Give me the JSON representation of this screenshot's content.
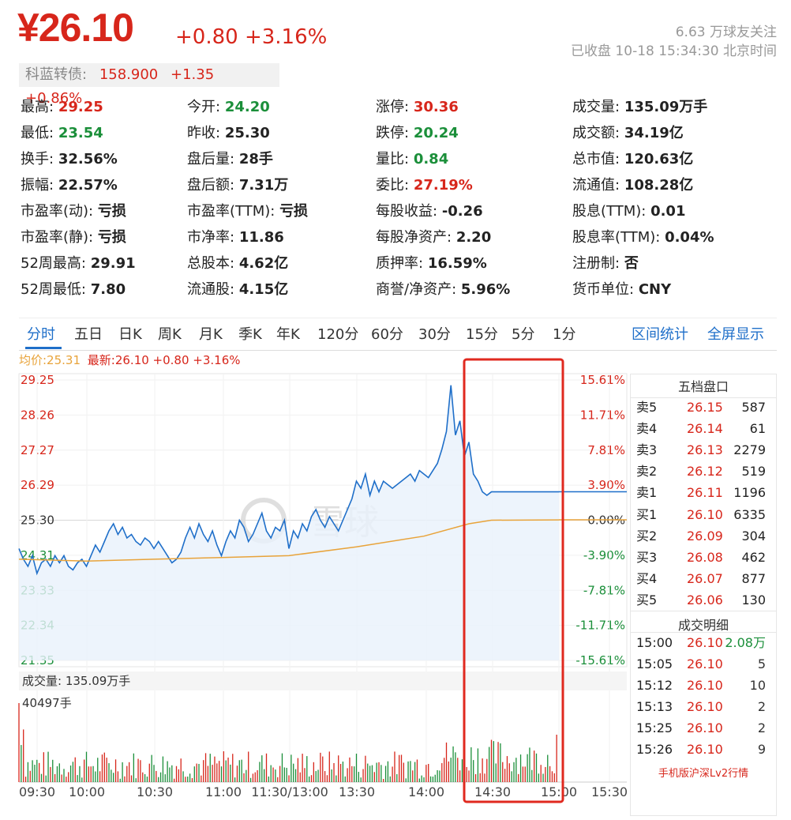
{
  "header": {
    "price": "¥26.10",
    "change": "+0.80",
    "change_pct": "+3.16%",
    "followers": "6.63 万球友关注",
    "status": "已收盘 10-18 15:34:30 北京时间"
  },
  "bond": {
    "label": "科蓝转债:",
    "price": "158.900",
    "change": "+1.35",
    "change_pct": "+0.86%"
  },
  "quote": [
    [
      {
        "l": "最高:",
        "v": "29.25",
        "c": "red"
      },
      {
        "l": "今开:",
        "v": "24.20",
        "c": "green"
      },
      {
        "l": "涨停:",
        "v": "30.36",
        "c": "red"
      },
      {
        "l": "成交量:",
        "v": "135.09万手",
        "c": ""
      }
    ],
    [
      {
        "l": "最低:",
        "v": "23.54",
        "c": "green"
      },
      {
        "l": "昨收:",
        "v": "25.30",
        "c": ""
      },
      {
        "l": "跌停:",
        "v": "20.24",
        "c": "green"
      },
      {
        "l": "成交额:",
        "v": "34.19亿",
        "c": ""
      }
    ],
    [
      {
        "l": "换手:",
        "v": "32.56%",
        "c": ""
      },
      {
        "l": "盘后量:",
        "v": "28手",
        "c": ""
      },
      {
        "l": "量比:",
        "v": "0.84",
        "c": "green"
      },
      {
        "l": "总市值:",
        "v": "120.63亿",
        "c": ""
      }
    ],
    [
      {
        "l": "振幅:",
        "v": "22.57%",
        "c": ""
      },
      {
        "l": "盘后额:",
        "v": "7.31万",
        "c": ""
      },
      {
        "l": "委比:",
        "v": "27.19%",
        "c": "red"
      },
      {
        "l": "流通值:",
        "v": "108.28亿",
        "c": ""
      }
    ],
    [
      {
        "l": "市盈率(动):",
        "v": "亏损",
        "c": ""
      },
      {
        "l": "市盈率(TTM):",
        "v": "亏损",
        "c": ""
      },
      {
        "l": "每股收益:",
        "v": "-0.26",
        "c": ""
      },
      {
        "l": "股息(TTM):",
        "v": "0.01",
        "c": ""
      }
    ],
    [
      {
        "l": "市盈率(静):",
        "v": "亏损",
        "c": ""
      },
      {
        "l": "市净率:",
        "v": "11.86",
        "c": ""
      },
      {
        "l": "每股净资产:",
        "v": "2.20",
        "c": ""
      },
      {
        "l": "股息率(TTM):",
        "v": "0.04%",
        "c": ""
      }
    ],
    [
      {
        "l": "52周最高:",
        "v": "29.91",
        "c": ""
      },
      {
        "l": "总股本:",
        "v": "4.62亿",
        "c": ""
      },
      {
        "l": "质押率:",
        "v": "16.59%",
        "c": ""
      },
      {
        "l": "注册制:",
        "v": "否",
        "c": ""
      }
    ],
    [
      {
        "l": "52周最低:",
        "v": "7.80",
        "c": ""
      },
      {
        "l": "流通股:",
        "v": "4.15亿",
        "c": ""
      },
      {
        "l": "商誉/净资产:",
        "v": "5.96%",
        "c": ""
      },
      {
        "l": "货币单位:",
        "v": "CNY",
        "c": ""
      }
    ]
  ],
  "tabs": [
    "分时",
    "五日",
    "日K",
    "周K",
    "月K",
    "季K",
    "年K",
    "120分",
    "60分",
    "30分",
    "15分",
    "5分",
    "1分"
  ],
  "tab_actions": [
    "区间统计",
    "全屏显示"
  ],
  "legend": {
    "avg": "均价:25.31",
    "latest": "最新:26.10 +0.80 +3.16%"
  },
  "watermark": "雪球",
  "volume_label": "成交量: 135.09万手",
  "volume_max_label": "40497手",
  "orderbook": {
    "title": "五档盘口",
    "asks": [
      [
        "卖5",
        "26.15",
        "587"
      ],
      [
        "卖4",
        "26.14",
        "61"
      ],
      [
        "卖3",
        "26.13",
        "2279"
      ],
      [
        "卖2",
        "26.12",
        "519"
      ],
      [
        "卖1",
        "26.11",
        "1196"
      ]
    ],
    "bids": [
      [
        "买1",
        "26.10",
        "6335"
      ],
      [
        "买2",
        "26.09",
        "304"
      ],
      [
        "买3",
        "26.08",
        "462"
      ],
      [
        "买4",
        "26.07",
        "877"
      ],
      [
        "买5",
        "26.06",
        "130"
      ]
    ]
  },
  "trades": {
    "title": "成交明细",
    "rows": [
      [
        "15:00",
        "26.10",
        "2.08万"
      ],
      [
        "15:05",
        "26.10",
        "5"
      ],
      [
        "15:12",
        "26.10",
        "10"
      ],
      [
        "15:13",
        "26.10",
        "2"
      ],
      [
        "15:25",
        "26.10",
        "2"
      ],
      [
        "15:26",
        "26.10",
        "9"
      ]
    ],
    "footer": "手机版沪深Lv2行情"
  },
  "colors": {
    "up": "#d7261b",
    "down": "#1b8f3a",
    "line": "#1f6fc9",
    "avg": "#e8a33a",
    "highlight": "#e0291f"
  },
  "chart_data": {
    "type": "line",
    "prev_close": 25.3,
    "ylim": [
      21.35,
      29.25
    ],
    "y_ticks_left": [
      "29.25",
      "28.26",
      "27.27",
      "26.29",
      "25.30",
      "24.31",
      "23.33",
      "22.34",
      "21.35"
    ],
    "y_ticks_right": [
      "15.61%",
      "11.71%",
      "7.81%",
      "3.90%",
      "0.00%",
      "-3.90%",
      "-7.81%",
      "-11.71%",
      "-15.61%"
    ],
    "x_ticks": [
      "09:30",
      "10:00",
      "10:30",
      "11:00",
      "11:30/13:00",
      "13:30",
      "14:00",
      "14:30",
      "15:00",
      "15:30"
    ],
    "series": [
      {
        "values_key": "price",
        "points": [
          [
            0,
            24.5
          ],
          [
            2,
            24.2
          ],
          [
            4,
            24.0
          ],
          [
            6,
            24.3
          ],
          [
            8,
            23.8
          ],
          [
            10,
            24.1
          ],
          [
            12,
            24.2
          ],
          [
            14,
            24.0
          ],
          [
            16,
            24.3
          ],
          [
            18,
            24.1
          ],
          [
            20,
            24.3
          ],
          [
            22,
            24.0
          ],
          [
            24,
            23.9
          ],
          [
            26,
            24.1
          ],
          [
            28,
            24.2
          ],
          [
            30,
            24.0
          ],
          [
            32,
            24.3
          ],
          [
            34,
            24.6
          ],
          [
            36,
            24.4
          ],
          [
            38,
            24.7
          ],
          [
            40,
            25.0
          ],
          [
            42,
            25.2
          ],
          [
            44,
            24.9
          ],
          [
            46,
            25.1
          ],
          [
            48,
            24.8
          ],
          [
            50,
            24.9
          ],
          [
            52,
            24.7
          ],
          [
            54,
            24.6
          ],
          [
            56,
            24.8
          ],
          [
            58,
            24.7
          ],
          [
            60,
            24.5
          ],
          [
            62,
            24.7
          ],
          [
            64,
            24.5
          ],
          [
            66,
            24.3
          ],
          [
            68,
            24.1
          ],
          [
            70,
            24.2
          ],
          [
            72,
            24.4
          ],
          [
            74,
            24.8
          ],
          [
            76,
            25.1
          ],
          [
            78,
            24.8
          ],
          [
            80,
            25.2
          ],
          [
            82,
            24.9
          ],
          [
            84,
            24.7
          ],
          [
            86,
            25.0
          ],
          [
            88,
            24.6
          ],
          [
            90,
            24.3
          ],
          [
            92,
            24.7
          ],
          [
            94,
            25.0
          ],
          [
            96,
            24.8
          ],
          [
            98,
            25.3
          ],
          [
            100,
            25.1
          ],
          [
            102,
            24.7
          ],
          [
            104,
            24.9
          ],
          [
            106,
            25.2
          ],
          [
            108,
            25.5
          ],
          [
            110,
            25.0
          ],
          [
            112,
            24.8
          ],
          [
            114,
            25.1
          ],
          [
            116,
            25.0
          ],
          [
            118,
            25.3
          ],
          [
            120,
            24.5
          ],
          [
            122,
            25.0
          ],
          [
            124,
            24.8
          ],
          [
            126,
            25.2
          ],
          [
            128,
            25.0
          ],
          [
            130,
            25.4
          ],
          [
            132,
            25.6
          ],
          [
            134,
            25.3
          ],
          [
            136,
            25.1
          ],
          [
            138,
            25.4
          ],
          [
            140,
            25.2
          ],
          [
            142,
            25.0
          ],
          [
            144,
            25.3
          ],
          [
            146,
            25.6
          ],
          [
            148,
            25.9
          ],
          [
            150,
            26.4
          ],
          [
            152,
            26.2
          ],
          [
            154,
            26.6
          ],
          [
            156,
            26.0
          ],
          [
            158,
            26.4
          ],
          [
            160,
            26.1
          ],
          [
            162,
            26.4
          ],
          [
            164,
            26.3
          ],
          [
            166,
            26.2
          ],
          [
            168,
            26.3
          ],
          [
            170,
            26.4
          ],
          [
            172,
            26.5
          ],
          [
            174,
            26.6
          ],
          [
            176,
            26.4
          ],
          [
            178,
            26.7
          ],
          [
            180,
            26.6
          ],
          [
            182,
            26.5
          ],
          [
            184,
            26.7
          ],
          [
            186,
            26.9
          ],
          [
            188,
            27.3
          ],
          [
            190,
            27.8
          ],
          [
            192,
            29.1
          ],
          [
            194,
            27.7
          ],
          [
            196,
            28.1
          ],
          [
            198,
            27.1
          ],
          [
            200,
            27.5
          ],
          [
            202,
            26.6
          ],
          [
            204,
            26.4
          ],
          [
            206,
            26.1
          ],
          [
            208,
            26.0
          ],
          [
            210,
            26.1
          ],
          [
            212,
            26.1
          ],
          [
            214,
            26.1
          ],
          [
            216,
            26.1
          ],
          [
            218,
            26.1
          ],
          [
            220,
            26.1
          ],
          [
            222,
            26.1
          ],
          [
            224,
            26.1
          ],
          [
            226,
            26.1
          ],
          [
            228,
            26.1
          ],
          [
            230,
            26.1
          ],
          [
            232,
            26.1
          ],
          [
            234,
            26.1
          ],
          [
            236,
            26.1
          ],
          [
            238,
            26.1
          ],
          [
            240,
            26.1
          ]
        ]
      },
      {
        "values_key": "avg",
        "points": [
          [
            0,
            24.2
          ],
          [
            30,
            24.15
          ],
          [
            60,
            24.2
          ],
          [
            90,
            24.25
          ],
          [
            120,
            24.3
          ],
          [
            150,
            24.55
          ],
          [
            180,
            24.85
          ],
          [
            200,
            25.2
          ],
          [
            210,
            25.3
          ],
          [
            240,
            25.31
          ]
        ]
      }
    ],
    "x_unit_minutes": 240
  }
}
